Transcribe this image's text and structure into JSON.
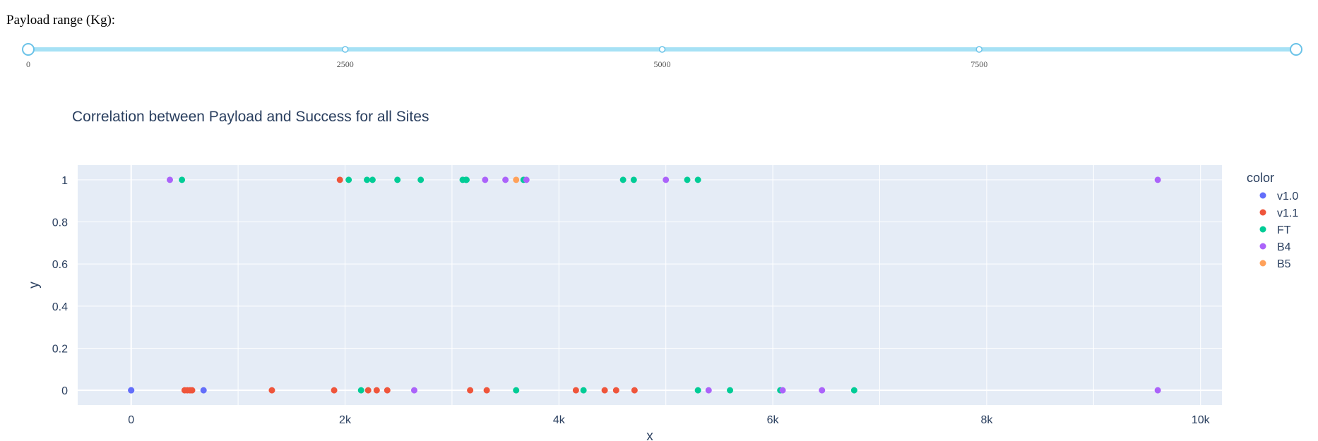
{
  "slider": {
    "label": "Payload range (Kg):",
    "min": 0,
    "max": 10000,
    "marks": [
      0,
      2500,
      5000,
      7500
    ],
    "value_low": 0,
    "value_high": 10000,
    "track_color": "#a6e1f5",
    "handle_border": "#6bc3e8"
  },
  "chart_data": {
    "type": "scatter",
    "title": "Correlation between Payload and Success for all Sites",
    "xlabel": "x",
    "ylabel": "y",
    "xlim": [
      -500,
      10200
    ],
    "ylim": [
      -0.07,
      1.07
    ],
    "xticks": [
      0,
      2000,
      4000,
      6000,
      8000,
      10000
    ],
    "xtick_labels": [
      "0",
      "2k",
      "4k",
      "6k",
      "8k",
      "10k"
    ],
    "yticks": [
      0,
      0.2,
      0.4,
      0.6,
      0.8,
      1
    ],
    "ytick_labels": [
      "0",
      "0.2",
      "0.4",
      "0.6",
      "0.8",
      "1"
    ],
    "grid": true,
    "legend_title": "color",
    "legend_position": "right",
    "series": [
      {
        "name": "v1.0",
        "color": "#636efa",
        "points": [
          [
            0,
            0
          ],
          [
            0,
            0
          ],
          [
            677,
            0
          ]
        ]
      },
      {
        "name": "v1.1",
        "color": "#ef553b",
        "points": [
          [
            500,
            0
          ],
          [
            525,
            0
          ],
          [
            550,
            0
          ],
          [
            570,
            0
          ],
          [
            1316,
            0
          ],
          [
            1898,
            0
          ],
          [
            1952,
            1
          ],
          [
            2216,
            0
          ],
          [
            2296,
            0
          ],
          [
            2395,
            0
          ],
          [
            3170,
            0
          ],
          [
            3325,
            0
          ],
          [
            4159,
            0
          ],
          [
            4428,
            0
          ],
          [
            4535,
            0
          ],
          [
            4707,
            0
          ]
        ]
      },
      {
        "name": "FT",
        "color": "#00cc96",
        "points": [
          [
            475,
            1
          ],
          [
            2034,
            1
          ],
          [
            2150,
            0
          ],
          [
            2205,
            1
          ],
          [
            2257,
            1
          ],
          [
            2490,
            1
          ],
          [
            2708,
            1
          ],
          [
            3100,
            1
          ],
          [
            3130,
            1
          ],
          [
            3136,
            1
          ],
          [
            3600,
            0
          ],
          [
            3669,
            1
          ],
          [
            4230,
            0
          ],
          [
            4600,
            1
          ],
          [
            4700,
            1
          ],
          [
            5200,
            1
          ],
          [
            5300,
            0
          ],
          [
            5300,
            1
          ],
          [
            5600,
            0
          ],
          [
            6070,
            0
          ],
          [
            6761,
            0
          ]
        ]
      },
      {
        "name": "B4",
        "color": "#ab63fa",
        "points": [
          [
            362,
            1
          ],
          [
            2647,
            0
          ],
          [
            3310,
            1
          ],
          [
            3500,
            1
          ],
          [
            3696,
            1
          ],
          [
            5000,
            1
          ],
          [
            5400,
            0
          ],
          [
            6092,
            0
          ],
          [
            6460,
            0
          ],
          [
            9600,
            1
          ],
          [
            9600,
            0
          ]
        ]
      },
      {
        "name": "B5",
        "color": "#ffa15a",
        "points": [
          [
            3600,
            1
          ]
        ]
      }
    ]
  },
  "colors": {
    "plot_bg": "#e5ecf6",
    "grid": "#ffffff",
    "text": "#2a3f5f",
    "tick_text": "#2a3f5f"
  }
}
